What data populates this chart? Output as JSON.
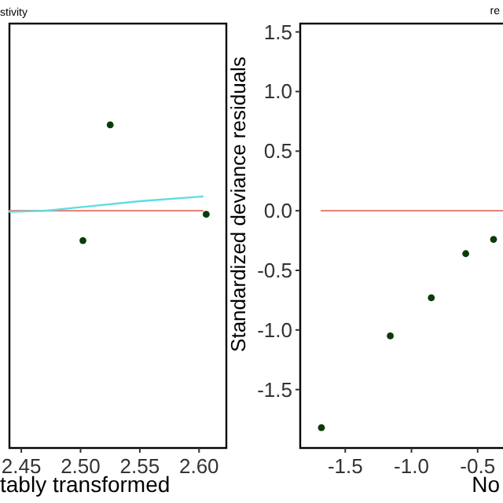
{
  "chart_data": [
    {
      "type": "scatter",
      "title": "stivity",
      "xlabel": "tably transformed",
      "xlim": [
        2.44,
        2.623
      ],
      "xticks": [
        2.45,
        {
          "value": 2.5,
          "label": "2.50"
        },
        2.55,
        {
          "value": 2.6,
          "label": "2.60"
        }
      ],
      "ylim": [
        -1.99,
        1.57
      ],
      "tick_labels": "x",
      "grid": false,
      "series": [
        {
          "type": "line",
          "color": "#e8877a",
          "x": [
            2.44,
            2.603
          ],
          "values": [
            0,
            0
          ]
        },
        {
          "type": "line",
          "color": "#5cdde6",
          "x": [
            2.44,
            2.47,
            2.5,
            2.55,
            2.603
          ],
          "values": [
            -0.01,
            0,
            0.03,
            0.08,
            0.12
          ]
        },
        {
          "type": "scatter",
          "marker": "circle",
          "color": "#0b3a0b",
          "x": [
            2.502,
            2.525,
            2.606
          ],
          "values": [
            -0.25,
            0.72,
            -0.03
          ]
        }
      ]
    },
    {
      "type": "scatter",
      "title": "re",
      "xlabel": "No",
      "ylabel": "Standardized deviance residuals",
      "xlim": [
        -1.84,
        -0.19
      ],
      "xticks": [
        -1.5,
        {
          "value": -1,
          "label": "-1.0"
        },
        -0.5
      ],
      "ylim": [
        -1.99,
        1.57
      ],
      "yticks": [
        -1.5,
        {
          "value": -1,
          "label": "-1.0"
        },
        -0.5,
        {
          "value": 0,
          "label": "0.0"
        },
        0.5,
        {
          "value": 1,
          "label": "1.0"
        },
        1.5
      ],
      "grid": false,
      "series": [
        {
          "type": "line",
          "color": "#e8877a",
          "x": [
            -1.68,
            -0.19
          ],
          "values": [
            0,
            0
          ]
        },
        {
          "type": "scatter",
          "marker": "circle",
          "color": "#0b3a0b",
          "x": [
            -1.68,
            -1.16,
            -0.85,
            -0.59,
            -0.38
          ],
          "values": [
            -1.82,
            -1.05,
            -0.73,
            -0.36,
            -0.24
          ]
        }
      ]
    }
  ]
}
